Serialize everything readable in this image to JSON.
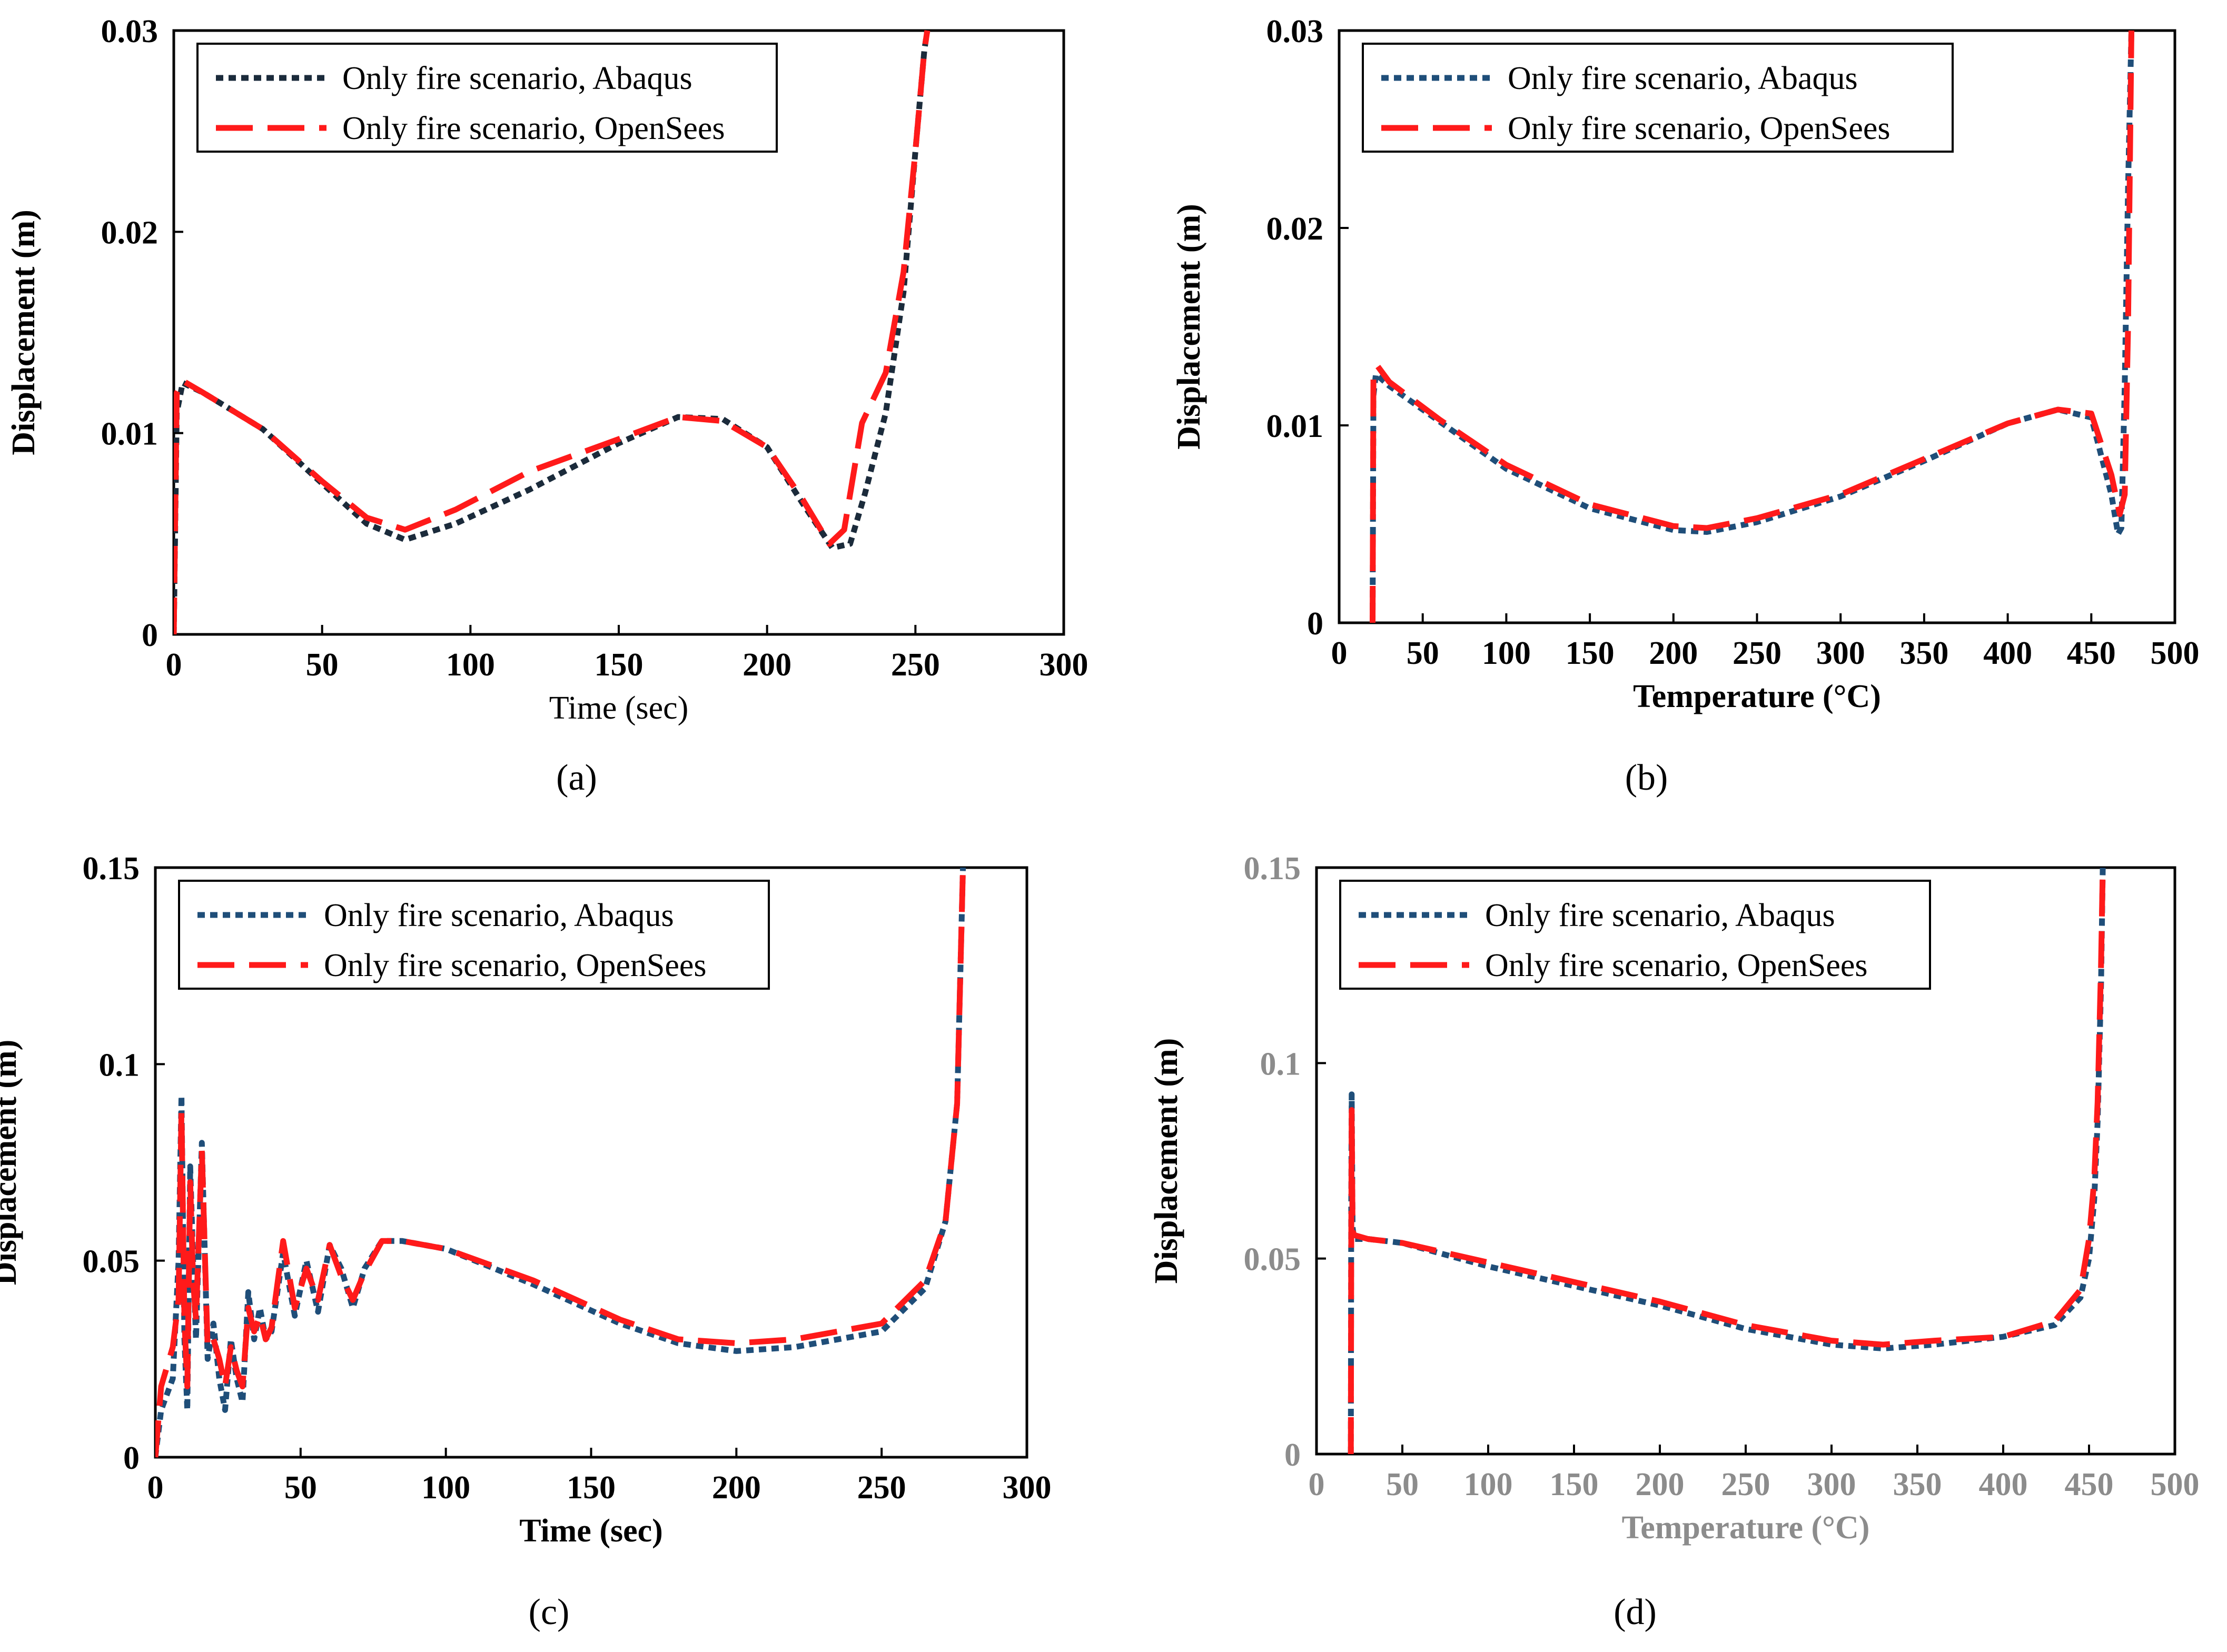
{
  "chart_data": [
    {
      "id": "a",
      "type": "line",
      "caption": "(a)",
      "xlabel": "Time (sec)",
      "ylabel": "Displacement (m)",
      "xlim": [
        0,
        300
      ],
      "ylim": [
        0,
        0.03
      ],
      "xticks": [
        "0",
        "50",
        "100",
        "150",
        "200",
        "250",
        "300"
      ],
      "yticks": [
        "0",
        "0.01",
        "0.02",
        "0.03"
      ],
      "legend_position": "top-left",
      "series": [
        {
          "name": "Only fire scenario, Abaqus",
          "color": "#1b2b3b",
          "style": "dotted",
          "x": [
            0,
            1,
            3,
            10,
            30,
            50,
            65,
            78,
            95,
            120,
            150,
            170,
            185,
            200,
            212,
            222,
            228,
            233,
            240,
            246,
            250,
            253,
            254
          ],
          "y": [
            0,
            0.011,
            0.0125,
            0.012,
            0.0102,
            0.0075,
            0.0055,
            0.0047,
            0.0055,
            0.0072,
            0.0095,
            0.0108,
            0.0107,
            0.0093,
            0.0065,
            0.0043,
            0.0045,
            0.007,
            0.011,
            0.017,
            0.024,
            0.029,
            0.03
          ]
        },
        {
          "name": "Only fire scenario, OpenSees",
          "color": "#ff1a1a",
          "style": "dashed",
          "x": [
            0,
            1,
            3,
            10,
            30,
            50,
            65,
            78,
            95,
            120,
            150,
            170,
            185,
            200,
            212,
            221,
            226,
            232,
            240,
            246,
            250,
            253,
            254
          ],
          "y": [
            0,
            0.012,
            0.0126,
            0.012,
            0.0102,
            0.0076,
            0.0058,
            0.0052,
            0.0062,
            0.0081,
            0.0097,
            0.0108,
            0.0106,
            0.0093,
            0.0067,
            0.0045,
            0.0052,
            0.0105,
            0.013,
            0.018,
            0.024,
            0.029,
            0.03
          ]
        }
      ]
    },
    {
      "id": "b",
      "type": "line",
      "caption": "(b)",
      "xlabel": "Temperature (°C)",
      "ylabel": "Displacement (m)",
      "xlim": [
        0,
        500
      ],
      "ylim": [
        0,
        0.03
      ],
      "xticks": [
        "0",
        "50",
        "100",
        "150",
        "200",
        "250",
        "300",
        "350",
        "400",
        "450",
        "500"
      ],
      "yticks": [
        "0",
        "0.01",
        "0.02",
        "0.03"
      ],
      "legend_position": "top-left",
      "series": [
        {
          "name": "Only fire scenario, Abaqus",
          "color": "#1f4e79",
          "style": "dotted",
          "x": [
            20,
            20.5,
            22,
            30,
            60,
            100,
            150,
            200,
            220,
            250,
            300,
            350,
            400,
            430,
            450,
            462,
            466,
            468,
            470,
            472,
            474
          ],
          "y": [
            0,
            0.0115,
            0.0126,
            0.012,
            0.0102,
            0.0078,
            0.0058,
            0.0047,
            0.0046,
            0.0051,
            0.0064,
            0.0082,
            0.0101,
            0.0108,
            0.0104,
            0.0065,
            0.0045,
            0.0048,
            0.012,
            0.022,
            0.03
          ]
        },
        {
          "name": "Only fire scenario, OpenSees",
          "color": "#ff1a1a",
          "style": "dashed",
          "x": [
            20,
            20.5,
            23,
            30,
            60,
            100,
            150,
            200,
            220,
            250,
            300,
            350,
            400,
            430,
            450,
            462,
            467,
            470,
            472,
            474
          ],
          "y": [
            0,
            0.0125,
            0.013,
            0.0122,
            0.0103,
            0.008,
            0.006,
            0.0049,
            0.0048,
            0.0053,
            0.0065,
            0.0083,
            0.0101,
            0.0108,
            0.0106,
            0.0075,
            0.0055,
            0.0065,
            0.015,
            0.03
          ]
        }
      ]
    },
    {
      "id": "c",
      "type": "line",
      "caption": "(c)",
      "xlabel": "Time (sec)",
      "ylabel": "Displacement (m)",
      "xlim": [
        0,
        300
      ],
      "ylim": [
        0,
        0.15
      ],
      "xticks": [
        "0",
        "50",
        "100",
        "150",
        "200",
        "250",
        "300"
      ],
      "yticks": [
        "0",
        "0.05",
        "0.1",
        "0.15"
      ],
      "legend_position": "top-left",
      "series": [
        {
          "name": "Only fire scenario, Abaqus",
          "color": "#1f4e79",
          "style": "dotted",
          "x": [
            0,
            2,
            6,
            8,
            9,
            10,
            11,
            12,
            13,
            14,
            16,
            18,
            20,
            22,
            24,
            26,
            28,
            30,
            32,
            34,
            36,
            38,
            40,
            44,
            48,
            52,
            56,
            60,
            64,
            68,
            72,
            78,
            85,
            100,
            130,
            160,
            180,
            200,
            220,
            250,
            265,
            272,
            276,
            278
          ],
          "y": [
            0,
            0.012,
            0.02,
            0.05,
            0.092,
            0.03,
            0.012,
            0.074,
            0.05,
            0.03,
            0.08,
            0.025,
            0.034,
            0.02,
            0.012,
            0.03,
            0.02,
            0.014,
            0.042,
            0.03,
            0.038,
            0.03,
            0.032,
            0.052,
            0.036,
            0.05,
            0.037,
            0.054,
            0.048,
            0.038,
            0.048,
            0.055,
            0.055,
            0.053,
            0.044,
            0.034,
            0.029,
            0.027,
            0.028,
            0.032,
            0.043,
            0.06,
            0.09,
            0.15
          ]
        },
        {
          "name": "Only fire scenario, OpenSees",
          "color": "#ff1a1a",
          "style": "dashed",
          "x": [
            0,
            2,
            6,
            8,
            9,
            10,
            11,
            12,
            13,
            14,
            16,
            18,
            20,
            22,
            24,
            26,
            28,
            30,
            32,
            34,
            36,
            38,
            40,
            44,
            48,
            52,
            56,
            60,
            64,
            68,
            72,
            78,
            85,
            100,
            130,
            160,
            180,
            200,
            220,
            250,
            265,
            272,
            276,
            278
          ],
          "y": [
            0,
            0.018,
            0.028,
            0.04,
            0.088,
            0.035,
            0.018,
            0.07,
            0.045,
            0.035,
            0.078,
            0.028,
            0.03,
            0.025,
            0.018,
            0.028,
            0.022,
            0.018,
            0.038,
            0.032,
            0.036,
            0.03,
            0.033,
            0.055,
            0.038,
            0.048,
            0.04,
            0.054,
            0.046,
            0.04,
            0.047,
            0.055,
            0.055,
            0.053,
            0.045,
            0.035,
            0.03,
            0.029,
            0.03,
            0.034,
            0.045,
            0.06,
            0.09,
            0.15
          ]
        }
      ]
    },
    {
      "id": "d",
      "type": "line",
      "caption": "(d)",
      "xlabel": "Temperature (°C)",
      "ylabel": "Displacement (m)",
      "xlim": [
        0,
        500
      ],
      "ylim": [
        0,
        0.15
      ],
      "xticks": [
        "0",
        "50",
        "100",
        "150",
        "200",
        "250",
        "300",
        "350",
        "400",
        "450",
        "500"
      ],
      "yticks": [
        "0",
        "0.05",
        "0.1",
        "0.15"
      ],
      "legend_position": "top-left",
      "series": [
        {
          "name": "Only fire scenario, Abaqus",
          "color": "#1f4e79",
          "style": "dotted",
          "x": [
            20,
            20.2,
            20.5,
            21,
            22,
            30,
            50,
            100,
            150,
            200,
            250,
            300,
            330,
            360,
            400,
            430,
            445,
            450,
            453,
            455,
            457,
            458
          ],
          "y": [
            0,
            0.06,
            0.092,
            0.058,
            0.055,
            0.055,
            0.054,
            0.048,
            0.043,
            0.038,
            0.032,
            0.028,
            0.027,
            0.028,
            0.03,
            0.033,
            0.04,
            0.05,
            0.065,
            0.085,
            0.12,
            0.15
          ]
        },
        {
          "name": "Only fire scenario, OpenSees",
          "color": "#ff1a1a",
          "style": "dashed",
          "x": [
            20,
            20.2,
            20.5,
            21,
            22,
            30,
            50,
            100,
            150,
            200,
            250,
            300,
            330,
            360,
            400,
            430,
            445,
            450,
            453,
            455,
            457,
            458
          ],
          "y": [
            0,
            0.05,
            0.088,
            0.057,
            0.056,
            0.055,
            0.054,
            0.049,
            0.044,
            0.039,
            0.033,
            0.029,
            0.028,
            0.029,
            0.03,
            0.034,
            0.042,
            0.055,
            0.07,
            0.09,
            0.125,
            0.15
          ]
        }
      ]
    }
  ]
}
